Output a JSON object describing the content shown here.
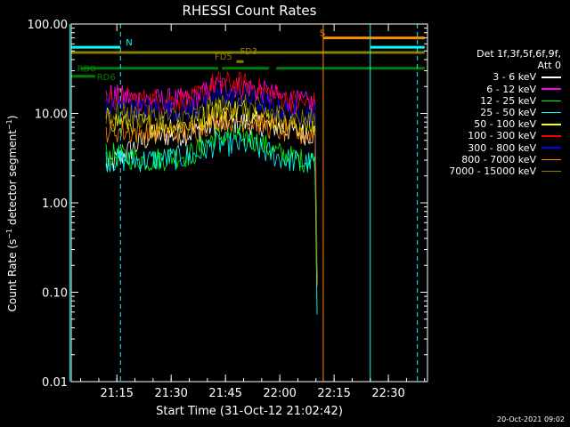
{
  "chart_data": {
    "type": "line",
    "title": "RHESSI Count Rates",
    "xlabel": "Start Time (31-Oct-12 21:02:42)",
    "ylabel": "Count Rate (s⁻¹ detector segment⁻¹)",
    "yscale": "log",
    "ylim": [
      0.01,
      100
    ],
    "xlim_minutes": [
      21.04,
      22.68
    ],
    "x_ticks": [
      "21:15",
      "21:30",
      "21:45",
      "22:00",
      "22:15",
      "22:30"
    ],
    "y_ticks": [
      "0.01",
      "0.10",
      "1.00",
      "10.00",
      "100.00"
    ],
    "data_window": [
      "21:12",
      "22:10"
    ],
    "legend_header": [
      "Det 1f,3f,5f,6f,9f,",
      "Att 0"
    ],
    "series": [
      {
        "name": "3 - 6 keV",
        "color": "#ffffff",
        "values": [
          [
            21.2,
            2.5
          ],
          [
            21.4,
            5.5
          ],
          [
            21.6,
            6.0
          ],
          [
            21.7,
            7.5
          ],
          [
            21.85,
            8.0
          ],
          [
            22.0,
            7.0
          ],
          [
            22.1,
            6.0
          ]
        ]
      },
      {
        "name": "6 - 12 keV",
        "color": "#ff00ff",
        "values": [
          [
            21.2,
            16
          ],
          [
            21.4,
            14
          ],
          [
            21.6,
            14
          ],
          [
            21.7,
            20
          ],
          [
            21.85,
            20
          ],
          [
            22.0,
            15
          ],
          [
            22.1,
            13
          ]
        ]
      },
      {
        "name": "12 - 25 keV",
        "color": "#00ff00",
        "values": [
          [
            21.2,
            3.5
          ],
          [
            21.4,
            3.0
          ],
          [
            21.6,
            3.5
          ],
          [
            21.7,
            5.5
          ],
          [
            21.85,
            5.5
          ],
          [
            22.0,
            3.5
          ],
          [
            22.1,
            3.0
          ]
        ]
      },
      {
        "name": "25 - 50 keV",
        "color": "#00ffff",
        "values": [
          [
            21.2,
            3.0
          ],
          [
            21.4,
            3.0
          ],
          [
            21.6,
            3.3
          ],
          [
            21.7,
            4.5
          ],
          [
            21.85,
            4.5
          ],
          [
            22.0,
            3.2
          ],
          [
            22.1,
            2.8
          ]
        ]
      },
      {
        "name": "50 - 100 keV",
        "color": "#ffff00",
        "values": [
          [
            21.2,
            8.5
          ],
          [
            21.4,
            7.5
          ],
          [
            21.6,
            7.5
          ],
          [
            21.7,
            11
          ],
          [
            21.85,
            11
          ],
          [
            22.0,
            8.0
          ],
          [
            22.1,
            7.0
          ]
        ]
      },
      {
        "name": "100 - 300 keV",
        "color": "#ff0000",
        "values": [
          [
            21.2,
            15
          ],
          [
            21.4,
            14
          ],
          [
            21.6,
            14
          ],
          [
            21.7,
            22
          ],
          [
            21.85,
            21
          ],
          [
            22.0,
            15
          ],
          [
            22.1,
            13
          ]
        ]
      },
      {
        "name": "300 - 800 keV",
        "color": "#0000ff",
        "values": [
          [
            21.2,
            12
          ],
          [
            21.4,
            11
          ],
          [
            21.6,
            11
          ],
          [
            21.7,
            15
          ],
          [
            21.85,
            15
          ],
          [
            22.0,
            11
          ],
          [
            22.1,
            10
          ]
        ]
      },
      {
        "name": "800 - 7000 keV",
        "color": "#ff8c00",
        "values": [
          [
            21.2,
            6.5
          ],
          [
            21.4,
            6.0
          ],
          [
            21.6,
            6.2
          ],
          [
            21.7,
            8.5
          ],
          [
            21.85,
            8.5
          ],
          [
            22.0,
            6.5
          ],
          [
            22.1,
            5.8
          ]
        ]
      },
      {
        "name": "7000 - 15000 keV",
        "color": "#8b8000",
        "values": [
          [
            21.2,
            10
          ],
          [
            21.4,
            9.0
          ],
          [
            21.6,
            9.0
          ],
          [
            21.7,
            12
          ],
          [
            21.85,
            12
          ],
          [
            22.0,
            9.5
          ],
          [
            22.1,
            8.5
          ]
        ]
      }
    ],
    "flag_bars": [
      {
        "label": "N",
        "color": "#00ffff",
        "y": 55,
        "segments": [
          [
            "21:02",
            "21:16"
          ],
          [
            "22:25",
            "22:40"
          ]
        ]
      },
      {
        "label": "S",
        "color": "#ff8c00",
        "y": 70,
        "segments": [
          [
            "22:12",
            "22:40"
          ]
        ]
      },
      {
        "label": "FD3",
        "color": "#8b8000",
        "y": 48,
        "segments": [
          [
            "21:02",
            "22:40"
          ]
        ]
      },
      {
        "label": "FD5",
        "color": "#8b8000",
        "y": 38,
        "segments": [
          [
            "21:48",
            "21:50"
          ]
        ]
      },
      {
        "label": "RD0",
        "color": "#008000",
        "y": 32,
        "segments": [
          [
            "21:05",
            "21:43"
          ],
          [
            "21:44",
            "21:57"
          ],
          [
            "21:59",
            "22:40"
          ]
        ]
      },
      {
        "label": "RD6",
        "color": "#008000",
        "y": 26,
        "segments": [
          [
            "21:02",
            "21:09"
          ]
        ]
      }
    ],
    "vertical_lines": [
      {
        "color": "#00ffff",
        "style": "solid",
        "time": "21:02"
      },
      {
        "color": "#00ffff",
        "style": "dashed",
        "time": "21:16"
      },
      {
        "color": "#ff8c00",
        "style": "solid",
        "time": "22:12"
      },
      {
        "color": "#00ffff",
        "style": "solid",
        "time": "22:25"
      },
      {
        "color": "#00ffff",
        "style": "dashed",
        "time": "22:38"
      }
    ]
  },
  "footer": {
    "stamp": "20-Oct-2021 09:02"
  }
}
